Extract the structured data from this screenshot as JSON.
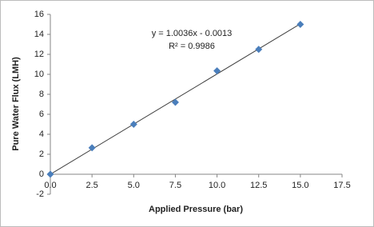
{
  "chart_data": {
    "type": "scatter",
    "x_label": "Applied Pressure (bar)",
    "y_label": "Pure Water Flux (LMH)",
    "x": [
      0,
      2.5,
      5,
      7.5,
      10,
      12.5,
      15
    ],
    "values": [
      0,
      2.65,
      5.0,
      7.2,
      10.35,
      12.5,
      15.0
    ],
    "color": "#4a7ebb",
    "xlim": [
      0,
      17.5
    ],
    "xticks": [
      {
        "value": 0,
        "label": "0.0"
      },
      2.5,
      {
        "value": 5,
        "label": "5.0"
      },
      7.5,
      {
        "value": 10,
        "label": "10.0"
      },
      12.5,
      {
        "value": 15,
        "label": "15.0"
      },
      17.5
    ],
    "ylim": [
      -2,
      16
    ],
    "yticks": [
      -2,
      0,
      2,
      4,
      6,
      8,
      10,
      12,
      14,
      16
    ],
    "grid": false,
    "trendline": {
      "slope": 1.0036,
      "intercept": -0.0013,
      "color": "#404040",
      "equation": "y = 1.0036x - 0.0013",
      "r2": "R² = 0.9986"
    }
  }
}
